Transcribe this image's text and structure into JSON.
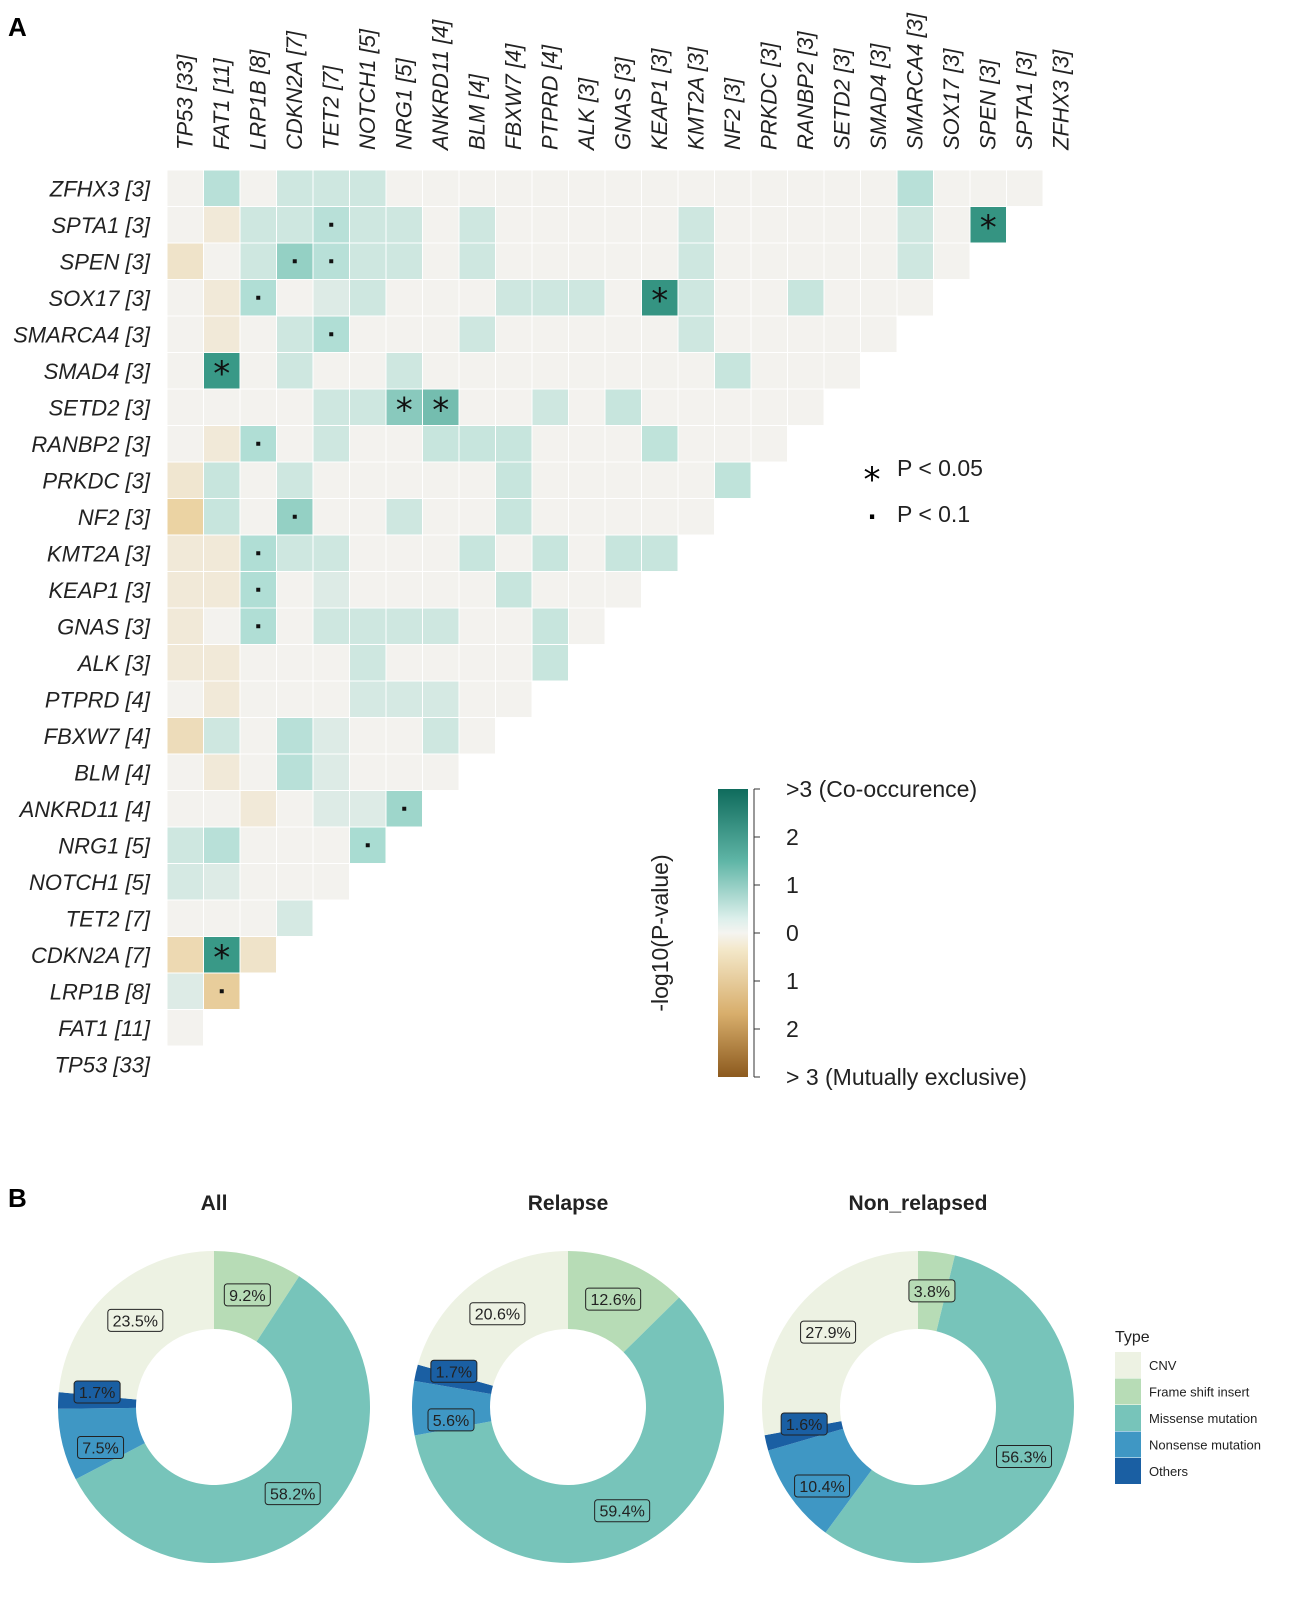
{
  "panel_a_label": "A",
  "panel_b_label": "B",
  "significance_legend": [
    {
      "symbol": "*",
      "label": "P < 0.05"
    },
    {
      "symbol": "·",
      "label": "P < 0.1"
    }
  ],
  "colorbar": {
    "title": "-log10(P-value)",
    "tick_labels": [
      ">3 (Co-occurence)",
      "2",
      "1",
      "0",
      "1",
      "2",
      "> 3 (Mutually exclusive)"
    ],
    "top_color": "#0f6b5c",
    "mid_color": "#f5f4f0",
    "bottom_color": "#8c5a1e"
  },
  "chart_data": [
    {
      "type": "heatmap",
      "title": "",
      "note": "values: positive = co-occurrence, negative = mutual exclusivity (-log10 P, signed); sig: 2 = P<0.05, 1 = P<0.1",
      "genes": [
        "TP53 [33]",
        "FAT1 [11]",
        "LRP1B [8]",
        "CDKN2A [7]",
        "TET2 [7]",
        "NOTCH1 [5]",
        "NRG1 [5]",
        "ANKRD11 [4]",
        "BLM [4]",
        "FBXW7 [4]",
        "PTPRD [4]",
        "ALK [3]",
        "GNAS [3]",
        "KEAP1 [3]",
        "KMT2A [3]",
        "NF2 [3]",
        "PRKDC [3]",
        "RANBP2 [3]",
        "SETD2 [3]",
        "SMAD4 [3]",
        "SMARCA4 [3]",
        "SOX17 [3]",
        "SPEN [3]",
        "SPTA1 [3]",
        "ZFHX3 [3]"
      ],
      "rows": [
        {
          "gene": "ZFHX3 [3]",
          "values": [
            0.0,
            0.8,
            0.0,
            0.5,
            0.5,
            0.5,
            0.0,
            0.0,
            0.0,
            0.0,
            0.0,
            0.0,
            0.0,
            0.0,
            0.0,
            0.0,
            0.0,
            0.0,
            0.0,
            0.0,
            0.8,
            0.0,
            0.0,
            0.0
          ],
          "sig": []
        },
        {
          "gene": "SPTA1 [3]",
          "values": [
            0.0,
            -0.3,
            0.5,
            0.5,
            0.8,
            0.5,
            0.5,
            0.0,
            0.5,
            0.0,
            0.0,
            0.0,
            0.0,
            0.0,
            0.5,
            0.0,
            0.0,
            0.0,
            0.0,
            0.0,
            0.5,
            0.0,
            2.2
          ],
          "sig": [
            [
              4,
              1
            ],
            [
              22,
              2
            ]
          ]
        },
        {
          "gene": "SPEN [3]",
          "values": [
            -0.5,
            0.0,
            0.5,
            1.2,
            0.8,
            0.5,
            0.5,
            0.0,
            0.5,
            0.0,
            0.0,
            0.0,
            0.0,
            0.0,
            0.5,
            0.0,
            0.0,
            0.0,
            0.0,
            0.0,
            0.5,
            0.0
          ],
          "sig": [
            [
              3,
              1
            ],
            [
              4,
              1
            ]
          ]
        },
        {
          "gene": "SOX17 [3]",
          "values": [
            0.0,
            -0.3,
            0.9,
            0.0,
            0.3,
            0.5,
            0.0,
            0.0,
            0.0,
            0.5,
            0.5,
            0.5,
            0.0,
            2.2,
            0.5,
            0.0,
            0.0,
            0.6,
            0.0,
            0.0,
            0.0
          ],
          "sig": [
            [
              2,
              1
            ],
            [
              13,
              2
            ]
          ]
        },
        {
          "gene": "SMARCA4 [3]",
          "values": [
            0.0,
            -0.3,
            0.0,
            0.5,
            0.9,
            0.0,
            0.0,
            0.0,
            0.5,
            0.0,
            0.0,
            0.0,
            0.0,
            0.0,
            0.5,
            0.0,
            0.0,
            0.0,
            0.0,
            0.0
          ],
          "sig": [
            [
              4,
              1
            ]
          ]
        },
        {
          "gene": "SMAD4 [3]",
          "values": [
            0.0,
            2.1,
            0.0,
            0.5,
            0.0,
            0.0,
            0.5,
            0.0,
            0.0,
            0.0,
            0.0,
            0.0,
            0.0,
            0.0,
            0.0,
            0.6,
            0.0,
            0.0,
            0.0
          ],
          "sig": [
            [
              1,
              2
            ]
          ]
        },
        {
          "gene": "SETD2 [3]",
          "values": [
            0.0,
            0.0,
            0.0,
            0.0,
            0.5,
            0.5,
            1.3,
            1.5,
            0.0,
            0.0,
            0.5,
            0.0,
            0.6,
            0.0,
            0.0,
            0.0,
            0.0,
            0.0
          ],
          "sig": [
            [
              6,
              2
            ],
            [
              7,
              2
            ]
          ]
        },
        {
          "gene": "RANBP2 [3]",
          "values": [
            0.0,
            -0.3,
            0.9,
            0.0,
            0.5,
            0.0,
            0.0,
            0.6,
            0.6,
            0.6,
            0.0,
            0.0,
            0.0,
            0.7,
            0.0,
            0.0,
            0.0
          ],
          "sig": [
            [
              2,
              1
            ]
          ]
        },
        {
          "gene": "PRKDC [3]",
          "values": [
            -0.4,
            0.6,
            0.0,
            0.5,
            0.0,
            0.0,
            0.0,
            0.0,
            0.0,
            0.6,
            0.0,
            0.0,
            0.0,
            0.0,
            0.0,
            0.7
          ],
          "sig": []
        },
        {
          "gene": "NF2 [3]",
          "values": [
            -1.0,
            0.6,
            0.0,
            1.2,
            0.0,
            0.0,
            0.5,
            0.0,
            0.0,
            0.6,
            0.0,
            0.0,
            0.0,
            0.0,
            0.0
          ],
          "sig": [
            [
              3,
              1
            ]
          ]
        },
        {
          "gene": "KMT2A [3]",
          "values": [
            -0.3,
            -0.3,
            0.9,
            0.5,
            0.5,
            0.0,
            0.0,
            0.0,
            0.6,
            0.0,
            0.6,
            0.0,
            0.6,
            0.6
          ],
          "sig": [
            [
              2,
              1
            ]
          ]
        },
        {
          "gene": "KEAP1 [3]",
          "values": [
            -0.3,
            -0.3,
            0.9,
            0.0,
            0.3,
            0.0,
            0.0,
            0.0,
            0.0,
            0.6,
            0.0,
            0.0,
            0.0
          ],
          "sig": [
            [
              2,
              1
            ]
          ]
        },
        {
          "gene": "GNAS [3]",
          "values": [
            -0.3,
            0.0,
            0.9,
            0.0,
            0.5,
            0.5,
            0.5,
            0.5,
            0.0,
            0.0,
            0.6,
            0.0
          ],
          "sig": [
            [
              2,
              1
            ]
          ]
        },
        {
          "gene": "ALK [3]",
          "values": [
            -0.3,
            -0.3,
            0.0,
            0.0,
            0.0,
            0.5,
            0.0,
            0.0,
            0.0,
            0.0,
            0.6
          ],
          "sig": []
        },
        {
          "gene": "PTPRD [4]",
          "values": [
            0.0,
            -0.3,
            0.0,
            0.0,
            0.0,
            0.4,
            0.4,
            0.4,
            0.0,
            0.0
          ],
          "sig": []
        },
        {
          "gene": "FBXW7 [4]",
          "values": [
            -0.7,
            0.5,
            0.0,
            0.8,
            0.3,
            0.0,
            0.0,
            0.5,
            0.0
          ],
          "sig": []
        },
        {
          "gene": "BLM [4]",
          "values": [
            0.0,
            -0.3,
            0.0,
            0.8,
            0.3,
            0.0,
            0.0,
            0.0
          ],
          "sig": []
        },
        {
          "gene": "ANKRD11 [4]",
          "values": [
            0.0,
            0.0,
            -0.3,
            0.0,
            0.3,
            0.3,
            1.1
          ],
          "sig": [
            [
              6,
              1
            ]
          ]
        },
        {
          "gene": "NRG1 [5]",
          "values": [
            0.5,
            0.8,
            0.0,
            0.0,
            0.0,
            1.0
          ],
          "sig": [
            [
              5,
              1
            ]
          ]
        },
        {
          "gene": "NOTCH1 [5]",
          "values": [
            0.4,
            0.3,
            0.0,
            0.0,
            0.0
          ],
          "sig": []
        },
        {
          "gene": "TET2 [7]",
          "values": [
            0.0,
            0.0,
            0.0,
            0.4
          ],
          "sig": []
        },
        {
          "gene": "CDKN2A [7]",
          "values": [
            -0.8,
            2.1,
            -0.5
          ],
          "sig": [
            [
              1,
              2
            ]
          ]
        },
        {
          "gene": "LRP1B [8]",
          "values": [
            0.3,
            -1.1
          ],
          "sig": [
            [
              1,
              1
            ]
          ]
        },
        {
          "gene": "FAT1 [11]",
          "values": [
            0.0
          ],
          "sig": []
        },
        {
          "gene": "TP53 [33]",
          "values": [],
          "sig": []
        }
      ]
    },
    {
      "type": "pie",
      "title": "All",
      "categories": [
        "CNV",
        "Frame shift insert",
        "Missense mutation",
        "Nonsense mutation",
        "Others"
      ],
      "values": [
        23.5,
        9.2,
        58.2,
        7.5,
        1.7
      ],
      "labels": [
        "23.5%",
        "9.2%",
        "58.2%",
        "7.5%",
        "1.7%"
      ]
    },
    {
      "type": "pie",
      "title": "Relapse",
      "categories": [
        "CNV",
        "Frame shift insert",
        "Missense mutation",
        "Nonsense mutation",
        "Others"
      ],
      "values": [
        20.6,
        12.6,
        59.4,
        5.6,
        1.7
      ],
      "labels": [
        "20.6%",
        "12.6%",
        "59.4%",
        "5.6%",
        "1.7%"
      ]
    },
    {
      "type": "pie",
      "title": "Non_relapsed",
      "categories": [
        "CNV",
        "Frame shift insert",
        "Missense mutation",
        "Nonsense mutation",
        "Others"
      ],
      "values": [
        27.9,
        3.8,
        56.3,
        10.4,
        1.6
      ],
      "labels": [
        "27.9%",
        "3.8%",
        "56.3%",
        "10.4%",
        "1.6%"
      ]
    }
  ],
  "type_legend": {
    "title": "Type",
    "items": [
      {
        "label": "CNV",
        "color": "#edf2e3"
      },
      {
        "label": "Frame shift insert",
        "color": "#b7dcb6"
      },
      {
        "label": "Missense mutation",
        "color": "#77c4ba"
      },
      {
        "label": "Nonsense mutation",
        "color": "#3f97c4"
      },
      {
        "label": "Others",
        "color": "#1a5fa3"
      }
    ]
  }
}
